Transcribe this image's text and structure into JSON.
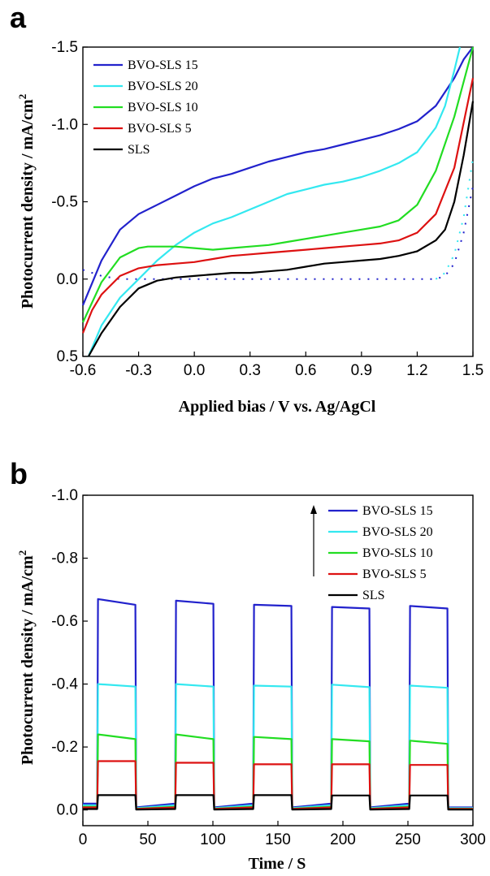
{
  "chart_data": [
    {
      "panel": "a",
      "type": "line",
      "xlabel": "Applied bias / V vs. Ag/AgCl",
      "ylabel": "Photocurrent density / mA/cm",
      "ylabel_superscript": "2",
      "xlim": [
        -0.6,
        1.5
      ],
      "ylim": [
        0.5,
        -1.5
      ],
      "xticks": [
        "-0.6",
        "-0.3",
        "0.0",
        "0.3",
        "0.6",
        "0.9",
        "1.2",
        "1.5"
      ],
      "yticks": [
        "-1.5",
        "-1.0",
        "-0.5",
        "0.0",
        "0.5"
      ],
      "legend_position": "top-left",
      "series": [
        {
          "name": "BVO-SLS 15",
          "color": "#2222cc",
          "x": [
            -0.6,
            -0.5,
            -0.4,
            -0.3,
            -0.2,
            -0.1,
            0.0,
            0.1,
            0.2,
            0.3,
            0.4,
            0.5,
            0.6,
            0.7,
            0.8,
            0.9,
            1.0,
            1.1,
            1.2,
            1.3,
            1.4,
            1.45,
            1.5
          ],
          "y": [
            0.17,
            -0.12,
            -0.32,
            -0.42,
            -0.48,
            -0.54,
            -0.6,
            -0.65,
            -0.68,
            -0.72,
            -0.76,
            -0.79,
            -0.82,
            -0.84,
            -0.87,
            -0.9,
            -0.93,
            -0.97,
            -1.02,
            -1.12,
            -1.3,
            -1.42,
            -1.5
          ]
        },
        {
          "name": "BVO-SLS 20",
          "color": "#33e8f0",
          "x": [
            -0.57,
            -0.5,
            -0.4,
            -0.3,
            -0.2,
            -0.1,
            0.0,
            0.1,
            0.2,
            0.3,
            0.4,
            0.5,
            0.6,
            0.7,
            0.8,
            0.9,
            1.0,
            1.1,
            1.2,
            1.3,
            1.35,
            1.4,
            1.43
          ],
          "y": [
            0.5,
            0.3,
            0.12,
            0.0,
            -0.12,
            -0.22,
            -0.3,
            -0.36,
            -0.4,
            -0.45,
            -0.5,
            -0.55,
            -0.58,
            -0.61,
            -0.63,
            -0.66,
            -0.7,
            -0.75,
            -0.82,
            -0.98,
            -1.12,
            -1.35,
            -1.5
          ]
        },
        {
          "name": "BVO-SLS 10",
          "color": "#22dd22",
          "x": [
            -0.6,
            -0.5,
            -0.4,
            -0.3,
            -0.25,
            -0.2,
            -0.1,
            0.0,
            0.1,
            0.2,
            0.3,
            0.4,
            0.5,
            0.6,
            0.7,
            0.8,
            0.9,
            1.0,
            1.1,
            1.2,
            1.3,
            1.4,
            1.5
          ],
          "y": [
            0.28,
            0.02,
            -0.14,
            -0.2,
            -0.21,
            -0.21,
            -0.21,
            -0.2,
            -0.19,
            -0.2,
            -0.21,
            -0.22,
            -0.24,
            -0.26,
            -0.28,
            -0.3,
            -0.32,
            -0.34,
            -0.38,
            -0.48,
            -0.7,
            -1.05,
            -1.5
          ]
        },
        {
          "name": "BVO-SLS 5",
          "color": "#dd1111",
          "x": [
            -0.6,
            -0.55,
            -0.5,
            -0.4,
            -0.3,
            -0.2,
            -0.1,
            0.0,
            0.1,
            0.2,
            0.3,
            0.4,
            0.5,
            0.6,
            0.7,
            0.8,
            0.9,
            1.0,
            1.1,
            1.2,
            1.3,
            1.4,
            1.5
          ],
          "y": [
            0.35,
            0.2,
            0.1,
            -0.02,
            -0.07,
            -0.09,
            -0.1,
            -0.11,
            -0.13,
            -0.15,
            -0.16,
            -0.17,
            -0.18,
            -0.19,
            -0.2,
            -0.21,
            -0.22,
            -0.23,
            -0.25,
            -0.3,
            -0.42,
            -0.72,
            -1.3
          ]
        },
        {
          "name": "SLS",
          "color": "#000000",
          "x": [
            -0.57,
            -0.5,
            -0.4,
            -0.3,
            -0.2,
            -0.1,
            0.0,
            0.1,
            0.2,
            0.3,
            0.4,
            0.5,
            0.6,
            0.7,
            0.8,
            0.9,
            1.0,
            1.1,
            1.2,
            1.3,
            1.35,
            1.4,
            1.45,
            1.5
          ],
          "y": [
            0.5,
            0.35,
            0.18,
            0.06,
            0.01,
            -0.01,
            -0.02,
            -0.03,
            -0.04,
            -0.04,
            -0.05,
            -0.06,
            -0.08,
            -0.1,
            -0.11,
            -0.12,
            -0.13,
            -0.15,
            -0.18,
            -0.25,
            -0.32,
            -0.5,
            -0.8,
            -1.15
          ]
        }
      ],
      "dark_scans": [
        {
          "color": "#2222cc",
          "x": [
            -0.6,
            -0.55,
            -0.5,
            -0.4,
            -0.3,
            -0.2,
            -0.1,
            0.0,
            0.1,
            0.2,
            0.3,
            0.4,
            0.5,
            0.6,
            0.7,
            0.8,
            0.9,
            1.0,
            1.1,
            1.2,
            1.3,
            1.35,
            1.4,
            1.45,
            1.5
          ],
          "y": [
            -0.06,
            -0.04,
            -0.02,
            0.0,
            0.0,
            0.0,
            0.0,
            0.0,
            0.0,
            0.0,
            0.0,
            0.0,
            0.0,
            0.0,
            0.0,
            0.0,
            0.0,
            0.0,
            0.0,
            0.0,
            0.0,
            -0.02,
            -0.1,
            -0.3,
            -0.6
          ]
        },
        {
          "color": "#33e8f0",
          "x": [
            1.3,
            1.35,
            1.4,
            1.45,
            1.5
          ],
          "y": [
            0.0,
            -0.04,
            -0.16,
            -0.4,
            -0.78
          ]
        }
      ]
    },
    {
      "panel": "b",
      "type": "line",
      "xlabel": "Time / S",
      "ylabel": "Photocurrent density / mA/cm",
      "ylabel_superscript": "2",
      "xlim": [
        0,
        300
      ],
      "ylim": [
        0.05,
        -1.0
      ],
      "xticks": [
        "0",
        "50",
        "100",
        "150",
        "200",
        "250",
        "300"
      ],
      "yticks": [
        "-1.0",
        "-0.8",
        "-0.6",
        "-0.4",
        "-0.2",
        "0.0"
      ],
      "legend_position": "top-right",
      "light_on_off_s": [
        [
          11,
          41
        ],
        [
          71,
          101
        ],
        [
          131,
          161
        ],
        [
          191,
          221
        ],
        [
          251,
          281
        ]
      ],
      "series": [
        {
          "name": "BVO-SLS 15",
          "color": "#2222cc",
          "on_start": [
            -0.67,
            -0.665,
            -0.652,
            -0.645,
            -0.648
          ],
          "on_end": [
            -0.652,
            -0.655,
            -0.648,
            -0.64,
            -0.64
          ],
          "dark": -0.02
        },
        {
          "name": "BVO-SLS 20",
          "color": "#33e8f0",
          "on_start": [
            -0.4,
            -0.4,
            -0.395,
            -0.398,
            -0.395
          ],
          "on_end": [
            -0.392,
            -0.392,
            -0.392,
            -0.39,
            -0.388
          ],
          "dark": -0.015
        },
        {
          "name": "BVO-SLS 10",
          "color": "#22dd22",
          "on_start": [
            -0.24,
            -0.24,
            -0.232,
            -0.225,
            -0.22
          ],
          "on_end": [
            -0.225,
            -0.225,
            -0.225,
            -0.218,
            -0.21
          ],
          "dark": -0.01
        },
        {
          "name": "BVO-SLS 5",
          "color": "#dd1111",
          "on_start": [
            -0.155,
            -0.15,
            -0.145,
            -0.145,
            -0.143
          ],
          "on_end": [
            -0.155,
            -0.15,
            -0.145,
            -0.145,
            -0.143
          ],
          "dark": -0.008
        },
        {
          "name": "SLS",
          "color": "#000000",
          "on_start": [
            -0.047,
            -0.047,
            -0.047,
            -0.046,
            -0.046
          ],
          "on_end": [
            -0.047,
            -0.047,
            -0.047,
            -0.046,
            -0.046
          ],
          "dark": -0.003
        }
      ]
    }
  ]
}
